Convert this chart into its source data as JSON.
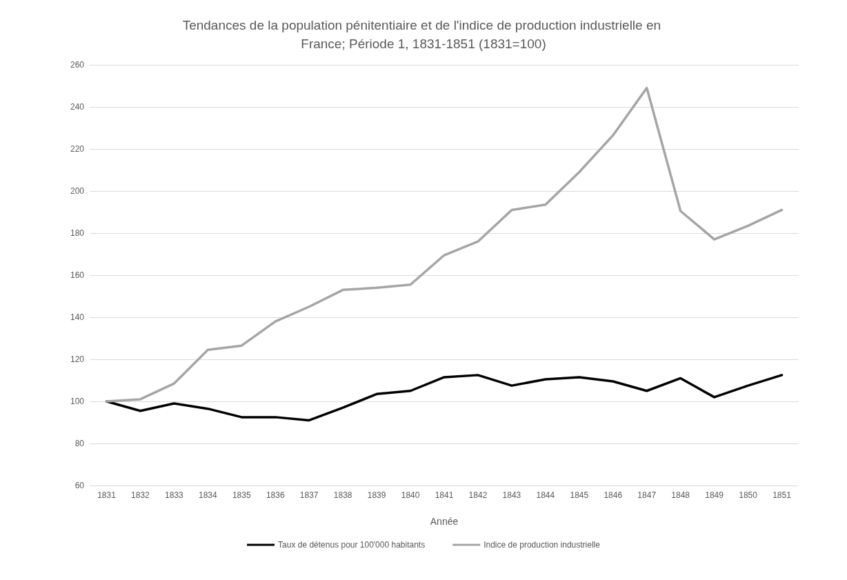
{
  "chart_data": {
    "type": "line",
    "title": "Tendances de la population pénitentiaire et de l'indice de production industrielle en France; Période 1, 1831-1851 (1831=100)",
    "xlabel": "Année",
    "categories": [
      "1831",
      "1832",
      "1833",
      "1834",
      "1835",
      "1836",
      "1837",
      "1838",
      "1839",
      "1840",
      "1841",
      "1842",
      "1843",
      "1844",
      "1845",
      "1846",
      "1847",
      "1848",
      "1849",
      "1850",
      "1851"
    ],
    "series": [
      {
        "name": "Taux de détenus pour 100'000 habitants",
        "color": "#000000",
        "values": [
          100,
          95.5,
          99,
          96.5,
          92.5,
          92.5,
          91,
          97,
          103.5,
          105,
          111.5,
          112.5,
          107.5,
          110.5,
          111.5,
          109.5,
          105,
          111,
          102,
          107.5,
          112.5
        ]
      },
      {
        "name": "Indice de production industrielle",
        "color": "#a5a5a5",
        "values": [
          100,
          101,
          108.5,
          124.5,
          126.5,
          138,
          145,
          153,
          154,
          155.5,
          169.5,
          176,
          191,
          193.5,
          209,
          226.5,
          249,
          190.5,
          177,
          183.5,
          191
        ]
      }
    ],
    "ylim": [
      60,
      260
    ],
    "yticks": [
      60,
      80,
      100,
      120,
      140,
      160,
      180,
      200,
      220,
      240,
      260
    ],
    "grid": "y",
    "legend": "bottom",
    "marker": "none",
    "line_style": "solid"
  }
}
